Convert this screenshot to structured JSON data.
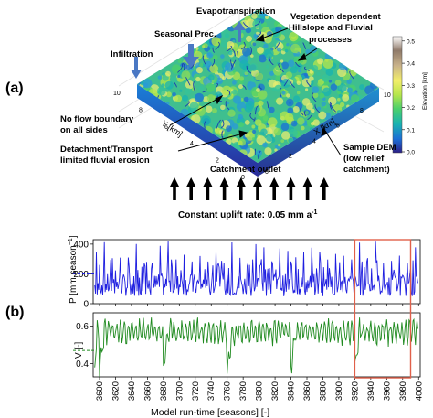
{
  "panel_a": {
    "label": "(a)",
    "annotations": {
      "evapotranspiration": "Evapotranspiration",
      "vegetation_1": "Vegetation dependent",
      "vegetation_2": "Hillslope and Fluvial",
      "vegetation_3": "processes",
      "seasonal_prec": "Seasonal Prec.",
      "infiltration": "Infiltration",
      "no_flow_1": "No flow boundary",
      "no_flow_2": "on all sides",
      "detach_1": "Detachment/Transport",
      "detach_2": "limited fluvial erosion",
      "sample_1": "Sample DEM",
      "sample_2": "(low relief",
      "sample_3": "catchment)",
      "outlet": "Catchment outlet",
      "uplift": "Constant uplift rate: 0.05 mm a",
      "uplift_exp": "-1"
    },
    "y_axis_label": "Y [km]",
    "x_axis_label": "X [km]",
    "y_ticks": [
      "10",
      "8",
      "6",
      "4",
      "2",
      "0"
    ],
    "x_ticks": [
      "0",
      "2",
      "4",
      "6",
      "8",
      "10"
    ],
    "colorbar": {
      "label": "Elevation [km]",
      "ticks": [
        "0.0",
        "0.1",
        "0.2",
        "0.3",
        "0.4",
        "0.5"
      ],
      "colors": [
        "#2c1f86",
        "#1c6fd6",
        "#19b3b0",
        "#4cd06a",
        "#b7e64b",
        "#f2ee6a",
        "#c9b28a",
        "#8f7a6a",
        "#ffffff"
      ]
    },
    "uplift_arrow_count": 10
  },
  "panel_b": {
    "label": "(b)",
    "precip_ylabel": "P [mm season",
    "precip_ylabel_exp": "−1",
    "precip_ylabel_end": "]",
    "veg_ylabel": "V [-]",
    "xlabel": "Model run-time [seasons] [-]",
    "precip_color": "#1f1fe0",
    "veg_color": "#1f8a1f",
    "highlight_color": "#e0604a"
  },
  "chart_data": [
    {
      "type": "line",
      "series": [
        {
          "name": "",
          "color": "#1f1fe0"
        }
      ],
      "x_range": [
        3592,
        4002
      ],
      "ylim": [
        0,
        430
      ],
      "y_ticks": [
        0,
        200,
        400
      ],
      "mean_line": 200,
      "x_ticks": [
        3600,
        3620,
        3640,
        3660,
        3680,
        3700,
        3720,
        3740,
        3760,
        3780,
        3800,
        3820,
        3840,
        3860,
        3880,
        3900,
        3920,
        3940,
        3960,
        3980,
        4000
      ],
      "highlight": [
        3920,
        3990
      ],
      "ylabel": "P [mm season−1]",
      "seed": 7,
      "base_range": [
        50,
        200
      ],
      "peak_range": [
        270,
        420
      ],
      "peak_every": 10
    },
    {
      "type": "line",
      "series": [
        {
          "name": "",
          "color": "#1f8a1f"
        }
      ],
      "x_range": [
        3592,
        4002
      ],
      "ylim": [
        0.33,
        0.67
      ],
      "y_ticks": [
        0.4,
        0.6
      ],
      "mean_line": 0.47,
      "x_ticks": [
        3600,
        3620,
        3640,
        3660,
        3680,
        3700,
        3720,
        3740,
        3760,
        3780,
        3800,
        3820,
        3840,
        3860,
        3880,
        3900,
        3920,
        3940,
        3960,
        3980,
        4000
      ],
      "highlight": [
        3920,
        3990
      ],
      "ylabel": "V [-]",
      "xlabel": "Model run-time [seasons] [-]",
      "base": 0.57,
      "amp": 0.05,
      "dips": [
        3600,
        3680,
        3760,
        3840,
        3920
      ]
    }
  ]
}
